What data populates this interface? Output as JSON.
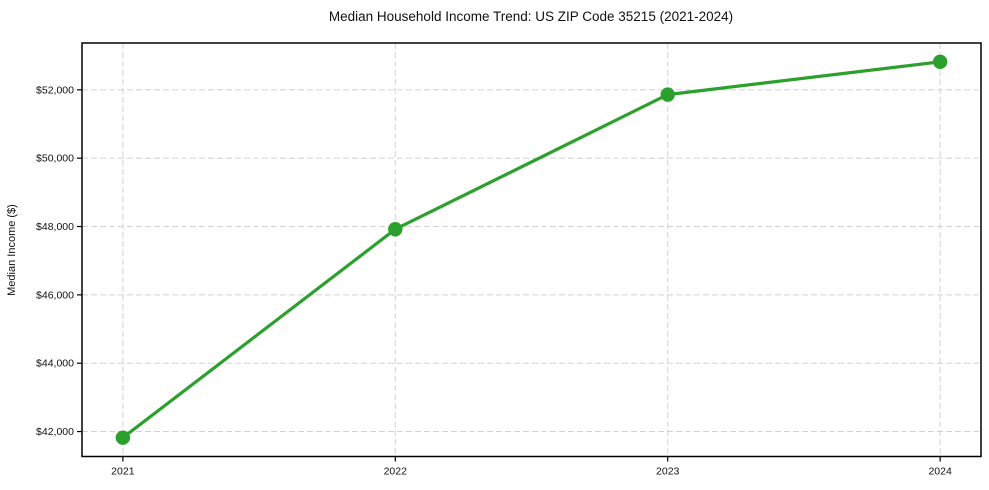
{
  "page": {
    "background_color": "#ffffff"
  },
  "chart_data": {
    "type": "line",
    "title": "Median Household Income Trend: US ZIP Code 35215 (2021-2024)",
    "xlabel": "",
    "ylabel": "Median Income ($)",
    "x": [
      2021,
      2022,
      2023,
      2024
    ],
    "x_tick_labels": [
      "2021",
      "2022",
      "2023",
      "2024"
    ],
    "series": [
      {
        "name": "Median Household Income",
        "values": [
          41820,
          47920,
          51860,
          52820
        ],
        "color": "#2ca02c"
      }
    ],
    "xlim": [
      2020.85,
      2024.15
    ],
    "ylim": [
      41270,
      53370
    ],
    "yticks": [
      42000,
      44000,
      46000,
      48000,
      50000,
      52000
    ],
    "ytick_labels": [
      "$42,000",
      "$44,000",
      "$46,000",
      "$48,000",
      "$50,000",
      "$52,000"
    ],
    "grid": true,
    "grid_style": "dashed",
    "grid_color": "#d2d2d2",
    "axis_color": "#000000",
    "text_color": "#111111",
    "marker": "circle",
    "marker_radius": 7.2,
    "line_width": 3.2,
    "legend_position": "none"
  }
}
